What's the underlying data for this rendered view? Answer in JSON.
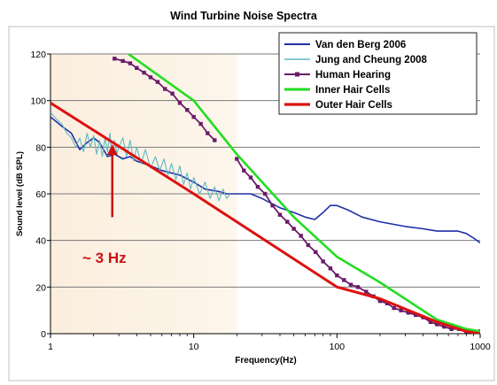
{
  "chart_data": {
    "type": "line",
    "title": "Wind Turbine Noise Spectra",
    "xlabel": "Frequency(Hz)",
    "ylabel": "Sound level (dB SPL)",
    "x_scale": "log",
    "xlim": [
      1,
      1000
    ],
    "ylim": [
      0,
      120
    ],
    "x_ticks": [
      "1",
      "10",
      "100",
      "1000"
    ],
    "y_ticks": [
      "0",
      "20",
      "40",
      "60",
      "80",
      "100",
      "120"
    ],
    "grid": "horizontal",
    "legend_position": "top-right",
    "shaded_x_range": [
      1,
      20
    ],
    "annotation": {
      "text": "~ 3 Hz",
      "x": 2.7,
      "y": 82,
      "color": "#cc1111"
    },
    "series": [
      {
        "name": "Van den Berg 2006",
        "color": "#1f2fa8",
        "marker": "none",
        "x": [
          1,
          1.2,
          1.4,
          1.6,
          1.8,
          2.0,
          2.2,
          2.5,
          2.8,
          3.2,
          3.6,
          4,
          5,
          6,
          8,
          10,
          12,
          15,
          17,
          20,
          25,
          30,
          40,
          50,
          60,
          70,
          80,
          90,
          100,
          120,
          150,
          200,
          300,
          400,
          500,
          600,
          700,
          800,
          900,
          1000
        ],
        "y": [
          93,
          89,
          86,
          79,
          82,
          84,
          82,
          76,
          77,
          75,
          76,
          74,
          72,
          70,
          68,
          65,
          62,
          61,
          60,
          60,
          60,
          58,
          54,
          52,
          50,
          49,
          52,
          55,
          55,
          53,
          50,
          48,
          46,
          45,
          44,
          44,
          44,
          43,
          41,
          39
        ]
      },
      {
        "name": "Jung and Cheung 2008",
        "color": "#5fb8c2",
        "marker": "none",
        "x": [
          1,
          1.1,
          1.2,
          1.3,
          1.4,
          1.5,
          1.6,
          1.7,
          1.8,
          1.9,
          2.0,
          2.1,
          2.2,
          2.3,
          2.4,
          2.5,
          2.6,
          2.7,
          2.8,
          2.9,
          3.0,
          3.2,
          3.4,
          3.6,
          3.8,
          4.0,
          4.3,
          4.6,
          5.0,
          5.4,
          5.8,
          6.2,
          6.6,
          7.0,
          7.5,
          8.0,
          8.5,
          9.0,
          9.5,
          10,
          11,
          12,
          13,
          14,
          15,
          16,
          17,
          18
        ],
        "y": [
          95,
          92,
          90,
          86,
          84,
          80,
          84,
          78,
          86,
          80,
          85,
          77,
          83,
          76,
          84,
          78,
          86,
          75,
          83,
          77,
          80,
          84,
          76,
          83,
          74,
          80,
          73,
          79,
          71,
          76,
          70,
          75,
          68,
          73,
          66,
          72,
          64,
          69,
          62,
          67,
          60,
          65,
          58,
          63,
          57,
          62,
          58,
          60
        ]
      },
      {
        "name": "Human Hearing",
        "color": "#6a1b6a",
        "marker": "square",
        "x": [
          2.8,
          3.2,
          3.6,
          4.0,
          4.5,
          5.0,
          5.6,
          6.3,
          7.1,
          8.0,
          9.0,
          10,
          11.2,
          12.5,
          14,
          16,
          18,
          20,
          22.4,
          25,
          28,
          31.5,
          35.5,
          40,
          45,
          50,
          56,
          63,
          71,
          80,
          90,
          100,
          112,
          125,
          140,
          160,
          180,
          200,
          224,
          250,
          280,
          315,
          355,
          400,
          450,
          500,
          560,
          630,
          710,
          800,
          900,
          1000
        ],
        "y": [
          118,
          117,
          116,
          114,
          112,
          110,
          108,
          105,
          103,
          99,
          96,
          93,
          90,
          86,
          83,
          null,
          null,
          75,
          70,
          67,
          63,
          60,
          55,
          51,
          48,
          45,
          42,
          38,
          35,
          31,
          28,
          25,
          23,
          21,
          20,
          18,
          16,
          14,
          13,
          11,
          10,
          9,
          8,
          7,
          5,
          4,
          3,
          2,
          2,
          1,
          1,
          1
        ]
      },
      {
        "name": "Inner Hair Cells",
        "color": "#22dd22",
        "marker": "none",
        "x": [
          3.5,
          10,
          20,
          50,
          100,
          200,
          500,
          800,
          1000
        ],
        "y": [
          120,
          100,
          77,
          50,
          33,
          22,
          6,
          2,
          1
        ]
      },
      {
        "name": "Outer Hair Cells",
        "color": "#dd1111",
        "marker": "none",
        "x": [
          1,
          10,
          100,
          200,
          500,
          800,
          1000
        ],
        "y": [
          99,
          60,
          20,
          15,
          5,
          1,
          0
        ]
      }
    ]
  }
}
